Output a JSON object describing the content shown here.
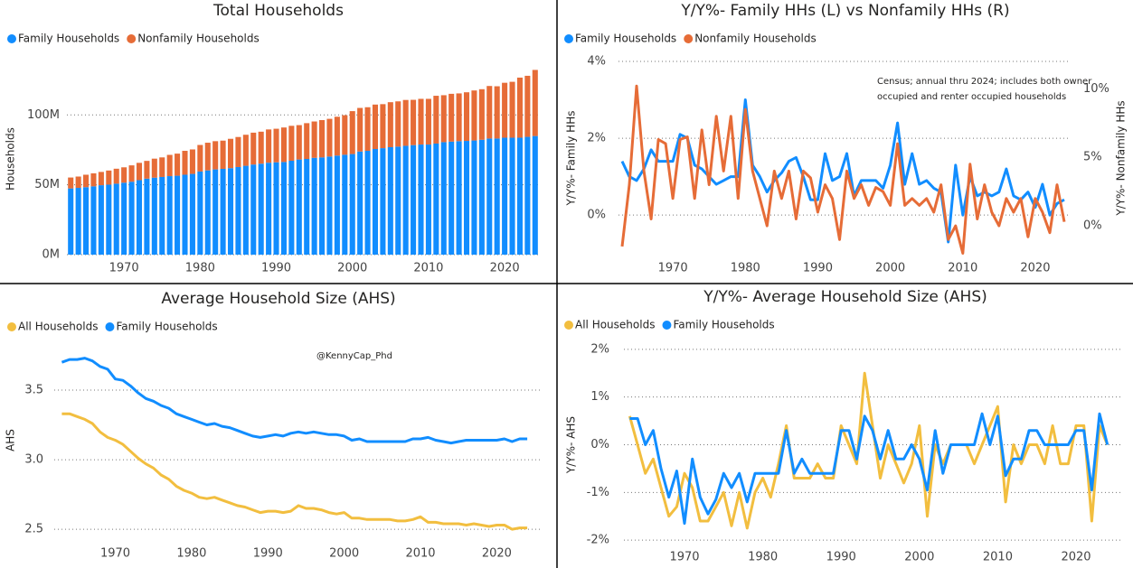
{
  "chart_data": [
    {
      "type": "bar",
      "stacked": true,
      "title": "Total Households",
      "ylabel": "Households",
      "x": [
        1963,
        1964,
        1965,
        1966,
        1967,
        1968,
        1969,
        1970,
        1971,
        1972,
        1973,
        1974,
        1975,
        1976,
        1977,
        1978,
        1979,
        1980,
        1981,
        1982,
        1983,
        1984,
        1985,
        1986,
        1987,
        1988,
        1989,
        1990,
        1991,
        1992,
        1993,
        1994,
        1995,
        1996,
        1997,
        1998,
        1999,
        2000,
        2001,
        2002,
        2003,
        2004,
        2005,
        2006,
        2007,
        2008,
        2009,
        2010,
        2011,
        2012,
        2013,
        2014,
        2015,
        2016,
        2017,
        2018,
        2019,
        2020,
        2021,
        2022,
        2023,
        2024
      ],
      "xlim": [
        1962.5,
        2024.5
      ],
      "xticks": [
        1970,
        1980,
        1990,
        2000,
        2010,
        2020
      ],
      "ylim": [
        0,
        137000000.0
      ],
      "yticks": [
        {
          "value": 0,
          "label": "0M"
        },
        {
          "value": 50000000.0,
          "label": "50M"
        },
        {
          "value": 100000000.0,
          "label": "100M"
        }
      ],
      "grid": true,
      "series": [
        {
          "name": "Family Households",
          "color": "#118dff",
          "values": [
            47400000.0,
            47800000.0,
            48300000.0,
            48900000.0,
            49700000.0,
            50100000.0,
            50800000.0,
            51500000.0,
            52200000.0,
            53300000.0,
            54400000.0,
            55100000.0,
            55600000.0,
            56200000.0,
            56500000.0,
            57200000.0,
            57800000.0,
            59500000.0,
            60300000.0,
            61000000.0,
            61400000.0,
            61900000.0,
            62700000.0,
            63600000.0,
            64500000.0,
            65100000.0,
            65800000.0,
            66100000.0,
            66300000.0,
            67200000.0,
            68100000.0,
            68500000.0,
            69300000.0,
            69600000.0,
            70200000.0,
            70900000.0,
            71500000.0,
            72000000.0,
            73800000.0,
            74300000.0,
            75600000.0,
            76200000.0,
            76900000.0,
            77300000.0,
            77900000.0,
            78400000.0,
            78800000.0,
            78800000.0,
            79500000.0,
            80500000.0,
            80900000.0,
            81200000.0,
            81400000.0,
            81700000.0,
            82200000.0,
            83100000.0,
            83100000.0,
            83700000.0,
            83700000.0,
            83700000.0,
            84300000.0,
            84900000.0
          ]
        },
        {
          "name": "Nonfamily Households",
          "color": "#e66c37",
          "values": [
            7800000.0,
            8100000.0,
            8900000.0,
            9300000.0,
            9500000.0,
            10100000.0,
            10700000.0,
            11000000.0,
            11700000.0,
            12400000.0,
            12700000.0,
            13600000.0,
            14000000.0,
            15200000.0,
            15800000.0,
            17100000.0,
            17500000.0,
            19000000.0,
            19800000.0,
            20200000.0,
            20200000.0,
            21000000.0,
            21500000.0,
            22200000.0,
            22800000.0,
            22900000.0,
            23800000.0,
            24000000.0,
            24700000.0,
            25000000.0,
            24600000.0,
            25600000.0,
            26000000.0,
            26700000.0,
            27000000.0,
            27800000.0,
            28300000.0,
            30700000.0,
            31200000.0,
            31200000.0,
            31800000.0,
            31500000.0,
            32200000.0,
            32400000.0,
            32800000.0,
            32400000.0,
            32700000.0,
            32700000.0,
            34200000.0,
            33600000.0,
            34200000.0,
            34200000.0,
            34800000.0,
            35800000.0,
            36200000.0,
            37600000.0,
            37400000.0,
            39300000.0,
            40000000.0,
            43000000.0,
            43700000.0,
            47300000.0
          ]
        }
      ]
    },
    {
      "type": "line",
      "title": "Y/Y%- Family HHs (L) vs Nonfamily HHs (R)",
      "ylabel": "Y/Y%- Family HHs",
      "y2label": "Y/Y%- Nonfamily HHs",
      "annotation": [
        "Census; annual thru 2024; includes both owner",
        "occupied and renter occupied households"
      ],
      "x": [
        1963,
        1964,
        1965,
        1966,
        1967,
        1968,
        1969,
        1970,
        1971,
        1972,
        1973,
        1974,
        1975,
        1976,
        1977,
        1978,
        1979,
        1980,
        1981,
        1982,
        1983,
        1984,
        1985,
        1986,
        1987,
        1988,
        1989,
        1990,
        1991,
        1992,
        1993,
        1994,
        1995,
        1996,
        1997,
        1998,
        1999,
        2000,
        2001,
        2002,
        2003,
        2004,
        2005,
        2006,
        2007,
        2008,
        2009,
        2010,
        2011,
        2012,
        2013,
        2014,
        2015,
        2016,
        2017,
        2018,
        2019,
        2020,
        2021,
        2022,
        2023,
        2024
      ],
      "xlim": [
        1962.5,
        2024.5
      ],
      "xticks": [
        1970,
        1980,
        1990,
        2000,
        2010,
        2020
      ],
      "ylim": [
        -1.03,
        4
      ],
      "yticks": [
        {
          "value": 0,
          "label": "0%"
        },
        {
          "value": 2,
          "label": "2%"
        },
        {
          "value": 4,
          "label": "4%"
        }
      ],
      "y2lim": [
        -2.1,
        12
      ],
      "y2ticks": [
        {
          "value": 0,
          "label": "0%"
        },
        {
          "value": 5,
          "label": "5%"
        },
        {
          "value": 10,
          "label": "10%"
        }
      ],
      "grid": true,
      "series": [
        {
          "name": "Family Households",
          "color": "#118dff",
          "values": [
            1.4,
            1.0,
            0.9,
            1.2,
            1.7,
            1.4,
            1.4,
            1.4,
            2.1,
            2.0,
            1.3,
            1.2,
            1.0,
            0.8,
            0.9,
            1.0,
            1.0,
            3.0,
            1.3,
            1.0,
            0.6,
            0.9,
            1.1,
            1.4,
            1.5,
            1.0,
            0.4,
            0.4,
            1.6,
            0.9,
            1.0,
            1.6,
            0.5,
            0.9,
            0.9,
            0.9,
            0.7,
            1.3,
            2.4,
            0.8,
            1.6,
            0.8,
            0.9,
            0.7,
            0.6,
            -0.7,
            1.3,
            0.0,
            1.0,
            0.5,
            0.6,
            0.5,
            0.6,
            1.2,
            0.5,
            0.4,
            0.6,
            0.2,
            0.8,
            0.0,
            0.3,
            0.4
          ]
        },
        {
          "name": "Nonfamily Households",
          "color": "#e66c37",
          "axis": "y2",
          "values": [
            -1.5,
            3.0,
            10.2,
            4.0,
            0.5,
            6.3,
            6.0,
            2.0,
            6.3,
            6.5,
            2.0,
            7.0,
            3.0,
            8.0,
            4.0,
            8.0,
            2.0,
            8.5,
            4.0,
            2.0,
            0.0,
            4.0,
            2.0,
            4.0,
            0.5,
            4.0,
            3.5,
            1.0,
            3.0,
            2.0,
            -1.0,
            4.0,
            2.0,
            3.0,
            1.5,
            2.8,
            2.5,
            1.5,
            6.0,
            1.5,
            2.0,
            1.5,
            2.0,
            1.0,
            3.0,
            -1.0,
            0.0,
            -2.0,
            4.5,
            0.5,
            3.0,
            1.0,
            0.0,
            2.0,
            1.0,
            2.0,
            -0.8,
            2.0,
            1.0,
            -0.5,
            3.0,
            0.3
          ]
        }
      ]
    },
    {
      "type": "line",
      "title": "Average Household Size (AHS)",
      "ylabel": "AHS",
      "annotation": "@KennyCap_Phd",
      "x": [
        1963,
        1964,
        1965,
        1966,
        1967,
        1968,
        1969,
        1970,
        1971,
        1972,
        1973,
        1974,
        1975,
        1976,
        1977,
        1978,
        1979,
        1980,
        1981,
        1982,
        1983,
        1984,
        1985,
        1986,
        1987,
        1988,
        1989,
        1990,
        1991,
        1992,
        1993,
        1994,
        1995,
        1996,
        1997,
        1998,
        1999,
        2000,
        2001,
        2002,
        2003,
        2004,
        2005,
        2006,
        2007,
        2008,
        2009,
        2010,
        2011,
        2012,
        2013,
        2014,
        2015,
        2016,
        2017,
        2018,
        2019,
        2020,
        2021,
        2022,
        2023,
        2024
      ],
      "xlim": [
        1962,
        2026
      ],
      "xticks": [
        1970,
        1980,
        1990,
        2000,
        2010,
        2020
      ],
      "ylim": [
        2.41,
        3.87
      ],
      "yticks": [
        2.5,
        {
          "value": 3,
          "label": "3.0"
        },
        3.5
      ],
      "grid": true,
      "series": [
        {
          "name": "All Households",
          "color": "#f2be3f",
          "values": [
            3.33,
            3.33,
            3.31,
            3.29,
            3.26,
            3.2,
            3.16,
            3.14,
            3.11,
            3.06,
            3.01,
            2.97,
            2.94,
            2.89,
            2.86,
            2.81,
            2.78,
            2.76,
            2.73,
            2.72,
            2.73,
            2.71,
            2.69,
            2.67,
            2.66,
            2.64,
            2.62,
            2.63,
            2.63,
            2.62,
            2.63,
            2.67,
            2.65,
            2.65,
            2.64,
            2.62,
            2.61,
            2.62,
            2.58,
            2.58,
            2.57,
            2.57,
            2.57,
            2.57,
            2.56,
            2.56,
            2.57,
            2.59,
            2.55,
            2.55,
            2.54,
            2.54,
            2.54,
            2.53,
            2.54,
            2.53,
            2.52,
            2.53,
            2.53,
            2.5,
            2.51,
            2.51
          ]
        },
        {
          "name": "Family Households",
          "color": "#118dff",
          "values": [
            3.7,
            3.72,
            3.72,
            3.73,
            3.71,
            3.67,
            3.65,
            3.58,
            3.57,
            3.53,
            3.48,
            3.44,
            3.42,
            3.39,
            3.37,
            3.33,
            3.31,
            3.29,
            3.27,
            3.25,
            3.26,
            3.24,
            3.23,
            3.21,
            3.19,
            3.17,
            3.16,
            3.17,
            3.18,
            3.17,
            3.19,
            3.2,
            3.19,
            3.2,
            3.19,
            3.18,
            3.18,
            3.17,
            3.14,
            3.15,
            3.13,
            3.13,
            3.13,
            3.13,
            3.13,
            3.13,
            3.15,
            3.15,
            3.16,
            3.14,
            3.13,
            3.12,
            3.13,
            3.14,
            3.14,
            3.14,
            3.14,
            3.14,
            3.15,
            3.13,
            3.15,
            3.15
          ]
        }
      ]
    },
    {
      "type": "line",
      "title": "Y/Y%- Average Household Size (AHS)",
      "ylabel": "Y/Y%- AHS",
      "x": [
        1963,
        1964,
        1965,
        1966,
        1967,
        1968,
        1969,
        1970,
        1971,
        1972,
        1973,
        1974,
        1975,
        1976,
        1977,
        1978,
        1979,
        1980,
        1981,
        1982,
        1983,
        1984,
        1985,
        1986,
        1987,
        1988,
        1989,
        1990,
        1991,
        1992,
        1993,
        1994,
        1995,
        1996,
        1997,
        1998,
        1999,
        2000,
        2001,
        2002,
        2003,
        2004,
        2005,
        2006,
        2007,
        2008,
        2009,
        2010,
        2011,
        2012,
        2013,
        2014,
        2015,
        2016,
        2017,
        2018,
        2019,
        2020,
        2021,
        2022,
        2023,
        2024
      ],
      "xlim": [
        1962.26,
        2025.77
      ],
      "xticks": [
        1970,
        1980,
        1990,
        2000,
        2010,
        2020
      ],
      "ylim": [
        -2.13,
        2.13
      ],
      "yticks": [
        {
          "value": -2,
          "label": "-2%"
        },
        {
          "value": -1,
          "label": "-1%"
        },
        {
          "value": 0,
          "label": "0%"
        },
        {
          "value": 1,
          "label": "1%"
        },
        {
          "value": 2,
          "label": "2%"
        }
      ],
      "grid": true,
      "series": [
        {
          "name": "All Households",
          "color": "#f2be3f",
          "values": [
            0.6,
            0.0,
            -0.6,
            -0.3,
            -0.9,
            -1.5,
            -1.3,
            -0.6,
            -0.9,
            -1.6,
            -1.6,
            -1.3,
            -1.0,
            -1.7,
            -1.0,
            -1.75,
            -1.0,
            -0.7,
            -1.1,
            -0.4,
            0.4,
            -0.7,
            -0.7,
            -0.7,
            -0.4,
            -0.7,
            -0.7,
            0.4,
            0.0,
            -0.4,
            1.5,
            0.4,
            -0.7,
            0.0,
            -0.4,
            -0.8,
            -0.4,
            0.4,
            -1.5,
            0.0,
            -0.4,
            0.0,
            0.0,
            0.0,
            -0.4,
            0.0,
            0.4,
            0.8,
            -1.2,
            0.0,
            -0.4,
            0.0,
            0.0,
            -0.4,
            0.4,
            -0.4,
            -0.4,
            0.4,
            0.4,
            -1.6,
            0.4,
            0.0
          ]
        },
        {
          "name": "Family Households",
          "color": "#118dff",
          "values": [
            0.55,
            0.55,
            0.0,
            0.3,
            -0.5,
            -1.1,
            -0.55,
            -1.65,
            -0.3,
            -1.1,
            -1.45,
            -1.15,
            -0.6,
            -0.9,
            -0.6,
            -1.2,
            -0.6,
            -0.6,
            -0.6,
            -0.6,
            0.3,
            -0.6,
            -0.3,
            -0.6,
            -0.6,
            -0.6,
            -0.6,
            0.3,
            0.3,
            -0.3,
            0.6,
            0.3,
            -0.3,
            0.3,
            -0.3,
            -0.3,
            0.0,
            -0.3,
            -0.95,
            0.3,
            -0.6,
            0.0,
            0.0,
            0.0,
            0.0,
            0.65,
            0.0,
            0.6,
            -0.65,
            -0.3,
            -0.3,
            0.3,
            0.3,
            0.0,
            0.0,
            0.0,
            0.0,
            0.3,
            0.3,
            -0.95,
            0.65,
            0.0
          ]
        }
      ]
    }
  ]
}
